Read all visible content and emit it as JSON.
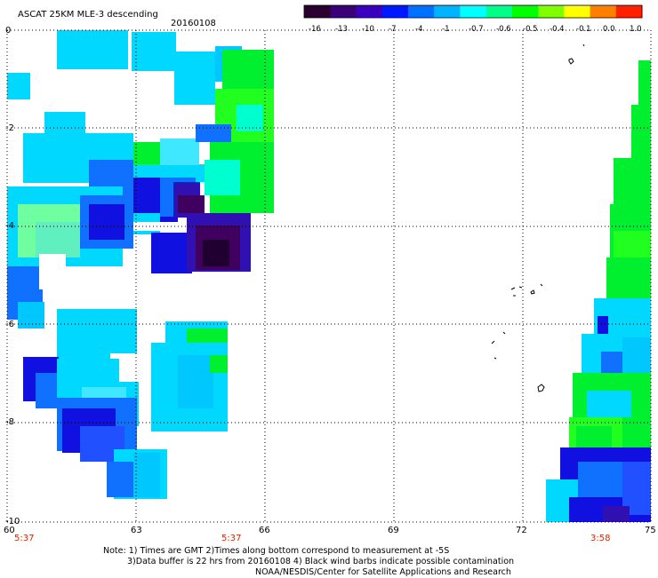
{
  "header": {
    "title": "ASCAT 25KM MLE-3 descending",
    "date": "20160108"
  },
  "colorbar": {
    "ticks": [
      "-16",
      "-13",
      "-10",
      "-7",
      "-4",
      "-1",
      "-0.7",
      "-0.6",
      "-0.5",
      "-0.4",
      "-0.1",
      "0.0",
      "1.0"
    ],
    "colors": [
      "#2a0030",
      "#3a0078",
      "#3a00c0",
      "#0018ff",
      "#0070ff",
      "#00b4ff",
      "#00ffff",
      "#00ff88",
      "#00ff00",
      "#80ff00",
      "#ffff00",
      "#ff8000",
      "#ff2000"
    ]
  },
  "axes": {
    "y_ticks": [
      "0",
      "-2",
      "-4",
      "-6",
      "-8",
      "-10"
    ],
    "x_ticks": [
      "60",
      "63",
      "66",
      "69",
      "72",
      "75"
    ],
    "x_range": [
      60,
      75
    ],
    "y_range": [
      0,
      -10
    ]
  },
  "pass_times": [
    "5:37",
    "5:37",
    "3:58"
  ],
  "notes": {
    "line1": "Note: 1) Times are GMT 2)Times along bottom correspond to measurement at -5S",
    "line2": "3)Data buffer is 22 hrs from 20160108 4) Black wind barbs indicate possible contamination",
    "line3": "NOAA/NESDIS/Center for Satellite Applications and Research"
  }
}
